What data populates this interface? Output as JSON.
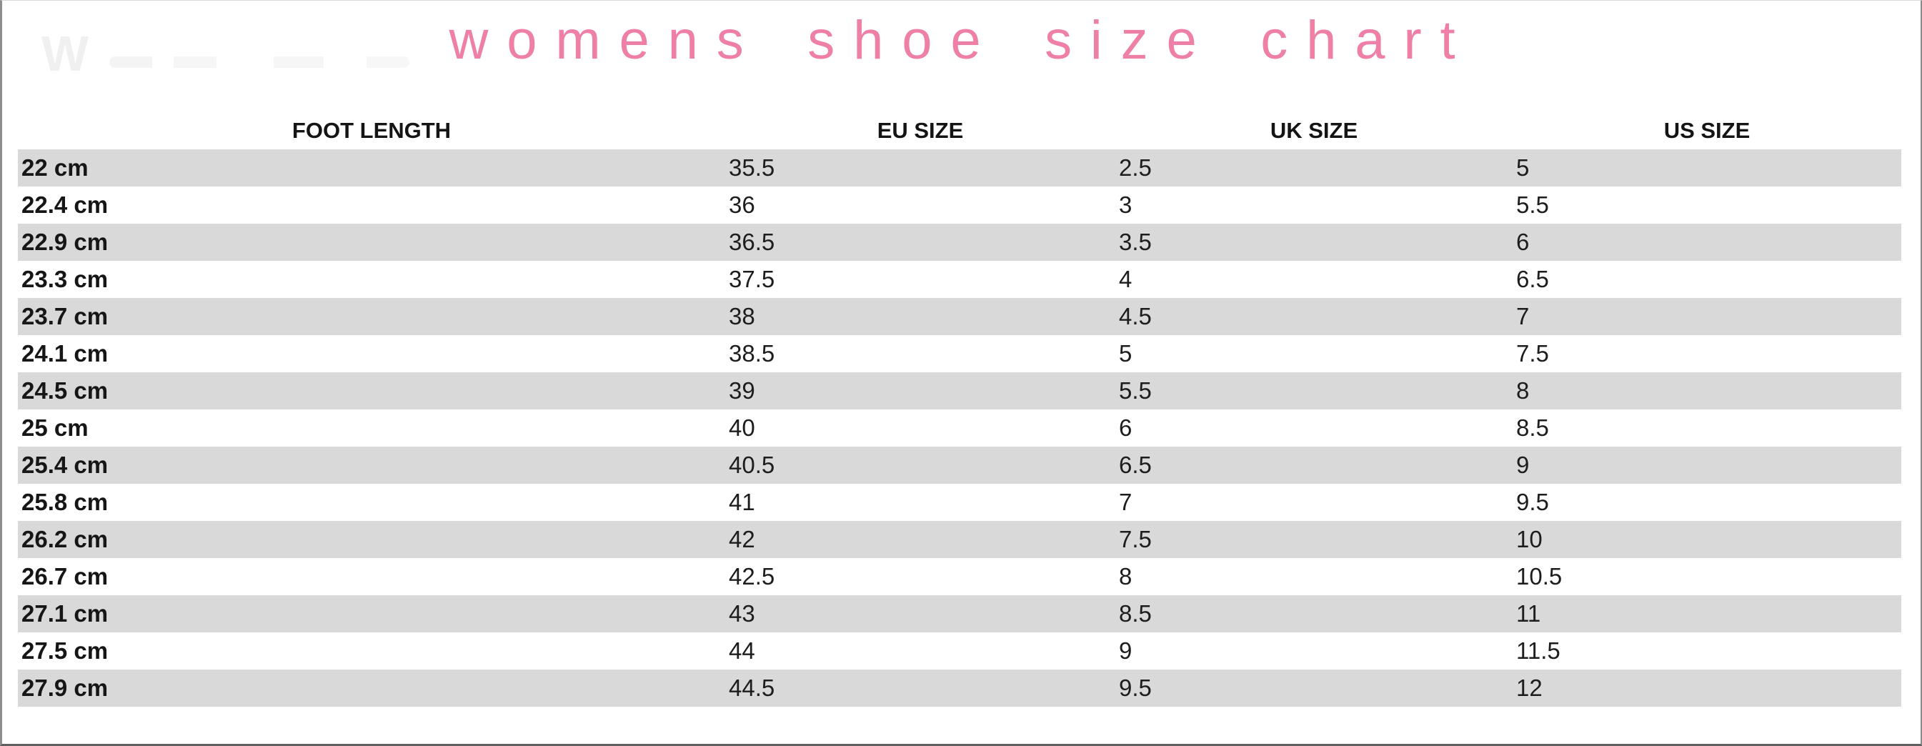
{
  "title": "womens shoe size chart",
  "watermark_letter": "W",
  "colors": {
    "title_pink": "#ee7fa6",
    "row_stripe_gray": "#d9d9d9",
    "text_dark": "#1d1d1d",
    "background": "#ffffff"
  },
  "chart_data": {
    "type": "table",
    "title": "womens shoe size chart",
    "columns": [
      "FOOT LENGTH",
      "EU SIZE",
      "UK SIZE",
      "US SIZE"
    ],
    "rows": [
      [
        "22 cm",
        "35.5",
        "2.5",
        "5"
      ],
      [
        "22.4 cm",
        "36",
        "3",
        "5.5"
      ],
      [
        "22.9 cm",
        "36.5",
        "3.5",
        "6"
      ],
      [
        "23.3 cm",
        "37.5",
        "4",
        "6.5"
      ],
      [
        "23.7 cm",
        "38",
        "4.5",
        "7"
      ],
      [
        "24.1 cm",
        "38.5",
        "5",
        "7.5"
      ],
      [
        "24.5 cm",
        "39",
        "5.5",
        "8"
      ],
      [
        "25 cm",
        "40",
        "6",
        "8.5"
      ],
      [
        "25.4 cm",
        "40.5",
        "6.5",
        "9"
      ],
      [
        "25.8 cm",
        "41",
        "7",
        "9.5"
      ],
      [
        "26.2 cm",
        "42",
        "7.5",
        "10"
      ],
      [
        "26.7 cm",
        "42.5",
        "8",
        "10.5"
      ],
      [
        "27.1 cm",
        "43",
        "8.5",
        "11"
      ],
      [
        "27.5 cm",
        "44",
        "9",
        "11.5"
      ],
      [
        "27.9 cm",
        "44.5",
        "9.5",
        "12"
      ]
    ],
    "layout": {
      "striped": true,
      "stripe_color": "#d9d9d9",
      "first_data_row_striped": true,
      "header_alignment": "center",
      "data_alignment": "left",
      "grid_lines": false
    }
  }
}
